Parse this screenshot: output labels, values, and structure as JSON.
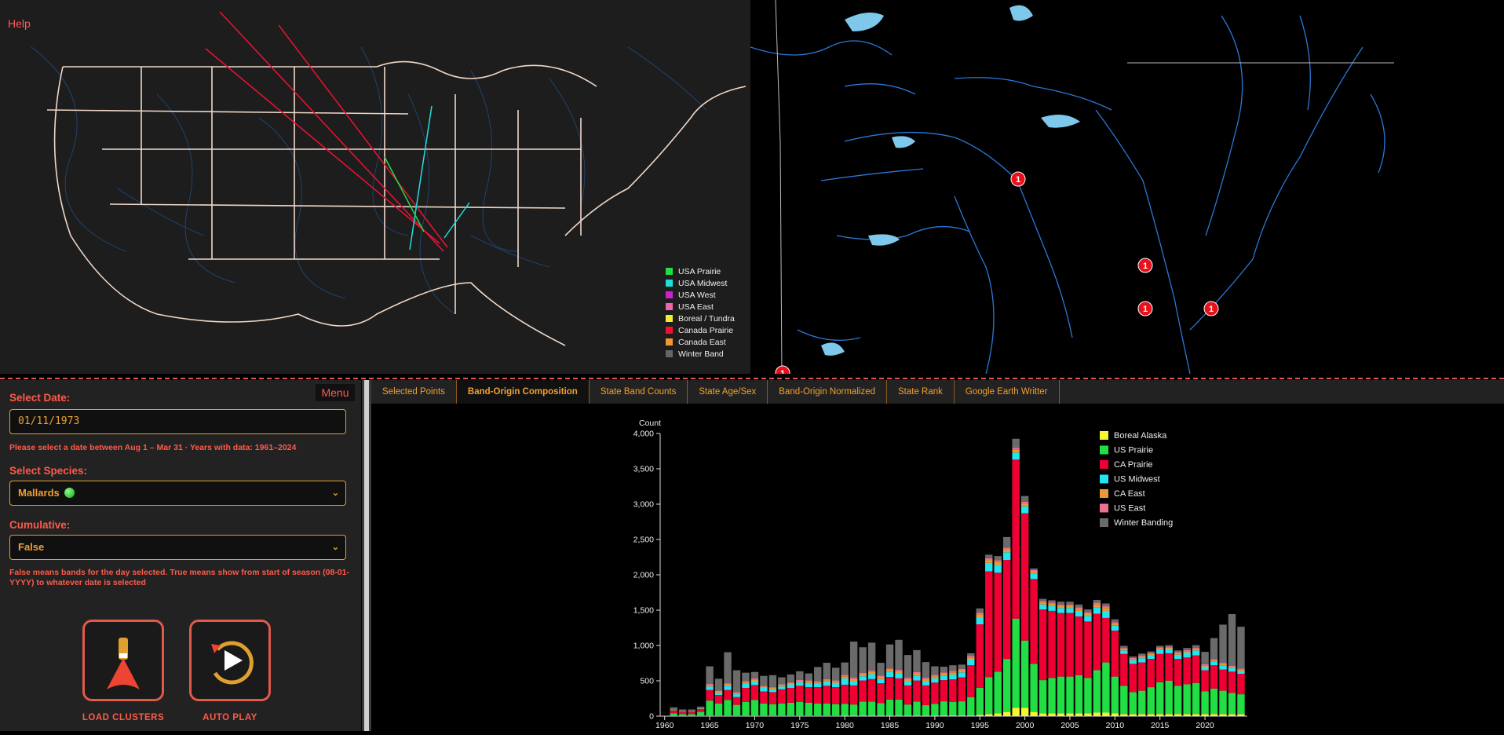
{
  "help_label": "Help",
  "map_legend": [
    {
      "label": "USA Prairie",
      "color": "#22dd44"
    },
    {
      "label": "USA Midwest",
      "color": "#22dddd"
    },
    {
      "label": "USA West",
      "color": "#cc22cc"
    },
    {
      "label": "USA East",
      "color": "#ee66aa"
    },
    {
      "label": "Boreal / Tundra",
      "color": "#eeee33"
    },
    {
      "label": "Canada Prairie",
      "color": "#ee1133"
    },
    {
      "label": "Canada East",
      "color": "#ee9933"
    },
    {
      "label": "Winter Band",
      "color": "#666666"
    }
  ],
  "markers": [
    "1",
    "1",
    "1",
    "1",
    "1"
  ],
  "panel": {
    "menu_label": "Menu",
    "date_label": "Select Date:",
    "date_value": "01/11/1973",
    "date_hint": "Please select a date between Aug 1 – Mar 31 · Years with data: 1961–2024",
    "species_label": "Select Species:",
    "species_value": "Mallards",
    "cumulative_label": "Cumulative:",
    "cumulative_value": "False",
    "cumulative_hint": "False means bands for the day selected. True means show from start of season (08-01-YYYY) to whatever date is selected",
    "load_clusters_label": "LOAD CLUSTERS",
    "auto_play_label": "AUTO PLAY"
  },
  "tabs": [
    {
      "label": "Selected Points",
      "active": false
    },
    {
      "label": "Band-Origin Composition",
      "active": true
    },
    {
      "label": "State Band Counts",
      "active": false
    },
    {
      "label": "State Age/Sex",
      "active": false
    },
    {
      "label": "Band-Origin Normalized",
      "active": false
    },
    {
      "label": "State Rank",
      "active": false
    },
    {
      "label": "Google Earth Writter",
      "active": false
    }
  ],
  "chart_data": {
    "type": "bar",
    "stacked": true,
    "ylabel": "Count",
    "ylim": [
      0,
      4000
    ],
    "yticks": [
      0,
      500,
      1000,
      1500,
      2000,
      2500,
      3000,
      3500,
      4000
    ],
    "xticks": [
      1960,
      1965,
      1970,
      1975,
      1980,
      1985,
      1990,
      1995,
      2000,
      2005,
      2010,
      2015,
      2020
    ],
    "x": [
      1961,
      1962,
      1963,
      1964,
      1965,
      1966,
      1967,
      1968,
      1969,
      1970,
      1971,
      1972,
      1973,
      1974,
      1975,
      1976,
      1977,
      1978,
      1979,
      1980,
      1981,
      1982,
      1983,
      1984,
      1985,
      1986,
      1987,
      1988,
      1989,
      1990,
      1991,
      1992,
      1993,
      1994,
      1995,
      1996,
      1997,
      1998,
      1999,
      2000,
      2001,
      2002,
      2003,
      2004,
      2005,
      2006,
      2007,
      2008,
      2009,
      2010,
      2011,
      2012,
      2013,
      2014,
      2015,
      2016,
      2017,
      2018,
      2019,
      2020,
      2021,
      2022,
      2023,
      2024
    ],
    "legend_position": "top-right",
    "series": [
      {
        "name": "Boreal Alaska",
        "color": "#f5f533",
        "values": [
          0,
          0,
          0,
          0,
          0,
          0,
          0,
          0,
          0,
          0,
          0,
          0,
          0,
          0,
          0,
          0,
          0,
          0,
          0,
          5,
          5,
          5,
          5,
          5,
          5,
          5,
          5,
          5,
          5,
          5,
          10,
          10,
          10,
          10,
          20,
          30,
          40,
          60,
          120,
          120,
          60,
          40,
          40,
          40,
          40,
          40,
          40,
          50,
          50,
          40,
          30,
          30,
          30,
          30,
          30,
          30,
          30,
          30,
          30,
          30,
          30,
          30,
          30,
          30
        ]
      },
      {
        "name": "US Prairie",
        "color": "#22dd44",
        "values": [
          40,
          30,
          30,
          60,
          220,
          180,
          230,
          160,
          200,
          230,
          180,
          170,
          180,
          190,
          200,
          190,
          180,
          180,
          170,
          170,
          160,
          200,
          200,
          180,
          230,
          230,
          160,
          200,
          150,
          170,
          200,
          190,
          200,
          260,
          380,
          520,
          590,
          750,
          1260,
          950,
          680,
          470,
          500,
          520,
          520,
          540,
          500,
          600,
          710,
          520,
          400,
          310,
          330,
          380,
          450,
          470,
          400,
          420,
          440,
          320,
          360,
          330,
          300,
          280
        ]
      },
      {
        "name": "CA Prairie",
        "color": "#ee0033",
        "values": [
          40,
          30,
          30,
          40,
          150,
          120,
          140,
          110,
          200,
          210,
          170,
          170,
          200,
          210,
          230,
          220,
          230,
          250,
          240,
          270,
          270,
          300,
          320,
          280,
          320,
          300,
          270,
          300,
          280,
          300,
          300,
          320,
          340,
          450,
          900,
          1500,
          1400,
          1400,
          2250,
          1800,
          1200,
          1000,
          950,
          900,
          900,
          830,
          800,
          800,
          630,
          650,
          450,
          400,
          400,
          400,
          400,
          390,
          380,
          380,
          390,
          300,
          330,
          300,
          300,
          290
        ]
      },
      {
        "name": "US Midwest",
        "color": "#22e5f0",
        "values": [
          5,
          5,
          5,
          5,
          50,
          30,
          60,
          40,
          60,
          60,
          50,
          40,
          40,
          50,
          50,
          60,
          50,
          60,
          60,
          90,
          60,
          60,
          70,
          60,
          70,
          70,
          60,
          70,
          60,
          60,
          60,
          70,
          70,
          80,
          100,
          120,
          110,
          110,
          100,
          100,
          80,
          70,
          70,
          70,
          70,
          80,
          80,
          90,
          100,
          70,
          50,
          50,
          60,
          50,
          60,
          60,
          60,
          70,
          70,
          50,
          50,
          60,
          50,
          40
        ]
      },
      {
        "name": "CA East",
        "color": "#ee9933",
        "values": [
          5,
          5,
          5,
          5,
          20,
          20,
          20,
          20,
          20,
          20,
          20,
          20,
          20,
          20,
          20,
          20,
          20,
          20,
          20,
          30,
          30,
          30,
          30,
          30,
          30,
          30,
          30,
          30,
          30,
          30,
          30,
          30,
          30,
          30,
          40,
          40,
          40,
          40,
          40,
          40,
          30,
          30,
          30,
          30,
          30,
          30,
          30,
          40,
          40,
          30,
          20,
          20,
          20,
          20,
          20,
          20,
          20,
          20,
          20,
          20,
          20,
          20,
          20,
          20
        ]
      },
      {
        "name": "US East",
        "color": "#f07090",
        "values": [
          5,
          5,
          5,
          5,
          15,
          10,
          15,
          10,
          15,
          15,
          10,
          10,
          10,
          10,
          15,
          15,
          15,
          15,
          15,
          20,
          20,
          20,
          20,
          20,
          20,
          20,
          20,
          20,
          20,
          20,
          20,
          20,
          20,
          20,
          25,
          25,
          25,
          25,
          25,
          25,
          20,
          20,
          20,
          20,
          20,
          20,
          20,
          25,
          25,
          20,
          15,
          15,
          15,
          15,
          15,
          15,
          15,
          15,
          15,
          15,
          15,
          15,
          15,
          15
        ]
      },
      {
        "name": "Winter Banding",
        "color": "#6a6a6a",
        "values": [
          30,
          20,
          20,
          20,
          250,
          170,
          440,
          310,
          120,
          90,
          140,
          170,
          100,
          110,
          120,
          100,
          200,
          230,
          180,
          175,
          510,
          360,
          395,
          180,
          340,
          425,
          320,
          310,
          220,
          120,
          80,
          80,
          60,
          40,
          60,
          50,
          60,
          150,
          130,
          80,
          20,
          30,
          30,
          40,
          40,
          40,
          40,
          40,
          40,
          40,
          30,
          20,
          30,
          20,
          20,
          20,
          25,
          30,
          40,
          175,
          300,
          540,
          730,
          590
        ]
      }
    ]
  }
}
